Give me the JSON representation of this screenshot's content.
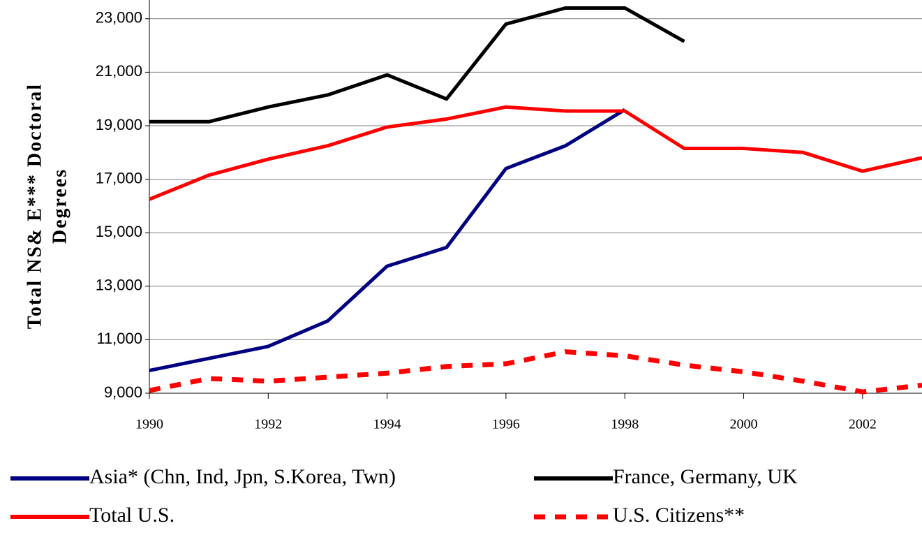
{
  "chart_data": {
    "type": "line",
    "y_label": [
      "Total NS& E*** Doctoral",
      "Degrees"
    ],
    "x": [
      1990,
      1991,
      1992,
      1993,
      1994,
      1995,
      1996,
      1997,
      1998,
      1999,
      2000,
      2001,
      2002,
      2003
    ],
    "series": [
      {
        "name": "Asia* (Chn, Ind, Jpn, S.Korea, Twn)",
        "color": "#000080",
        "dashed": false,
        "values": [
          9850,
          10300,
          10750,
          11700,
          13750,
          14450,
          17400,
          18250,
          19600,
          null,
          null,
          null,
          null,
          null
        ]
      },
      {
        "name": "France, Germany, UK",
        "color": "#000000",
        "dashed": false,
        "values": [
          19150,
          19150,
          19700,
          20150,
          20900,
          20000,
          22800,
          23400,
          23400,
          22150,
          null,
          null,
          null,
          null
        ]
      },
      {
        "name": "Total U.S.",
        "color": "#ff0000",
        "dashed": false,
        "values": [
          16250,
          17150,
          17750,
          18250,
          18950,
          19250,
          19700,
          19550,
          19550,
          18150,
          18150,
          18000,
          17300,
          17800
        ]
      },
      {
        "name": "U.S. Citizens**",
        "color": "#ff0000",
        "dashed": true,
        "values": [
          9100,
          9550,
          9450,
          9600,
          9750,
          10000,
          10100,
          10550,
          10400,
          10050,
          9800,
          9450,
          9050,
          9300
        ]
      }
    ],
    "xlim": [
      1990,
      2003
    ],
    "xticks": [
      1990,
      1992,
      1994,
      1996,
      1998,
      2000,
      2002
    ],
    "ylim": [
      9000,
      23700
    ],
    "yticks": [
      {
        "value": 9000,
        "label": "9,000"
      },
      {
        "value": 11000,
        "label": "11,000"
      },
      {
        "value": 13000,
        "label": "13,000"
      },
      {
        "value": 15000,
        "label": "15,000"
      },
      {
        "value": 17000,
        "label": "17,000"
      },
      {
        "value": 19000,
        "label": "19,000"
      },
      {
        "value": 21000,
        "label": "21,000"
      },
      {
        "value": 23000,
        "label": "23,000"
      }
    ],
    "grid": true,
    "legend": "bottom"
  }
}
